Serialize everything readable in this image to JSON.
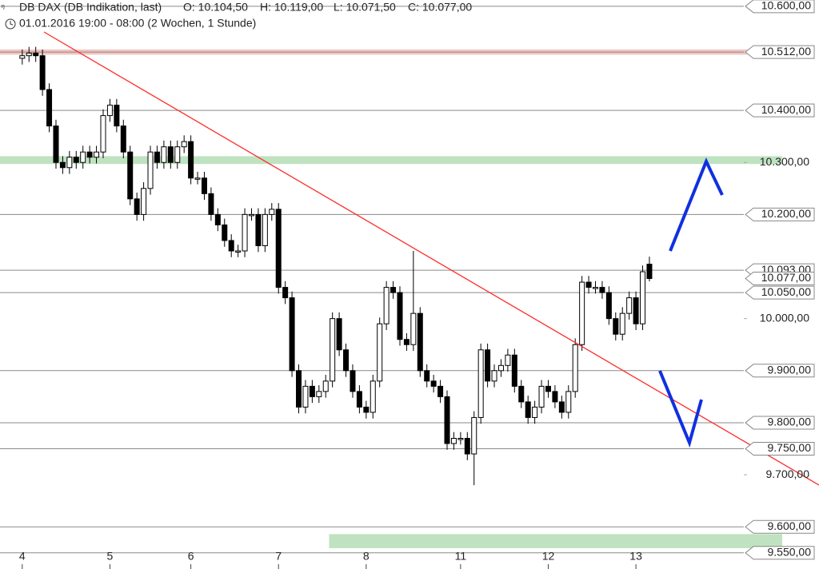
{
  "chart_data": {
    "type": "candlestick",
    "title": "DB DAX (DB Indikation, last)",
    "ohlc_labels": [
      "O: 10.104,50",
      "H: 10.119,00",
      "L: 10.071,50",
      "C: 10.077,00"
    ],
    "subtitle": "01.01.2016 19:00 - 08:00 (2 Wochen, 1 Stunde)",
    "up_color": "#ffffff",
    "down_color": "#000000",
    "open": [
      10500,
      10505,
      10510,
      10505,
      10440,
      10370,
      10300,
      10290,
      10310,
      10300,
      10320,
      10310,
      10320,
      10390,
      10410,
      10370,
      10320,
      10230,
      10200,
      10250,
      10320,
      10300,
      10330,
      10300,
      10330,
      10340,
      10270,
      10270,
      10240,
      10200,
      10180,
      10150,
      10130,
      10130,
      10200,
      10200,
      10140,
      10200,
      10210,
      10060,
      10040,
      9900,
      9830,
      9870,
      9850,
      9860,
      9880,
      10000,
      9940,
      9900,
      9860,
      9830,
      9820,
      9880,
      9990,
      10060,
      10050,
      9960,
      9950,
      10010,
      9900,
      9880,
      9870,
      9850,
      9760,
      9770,
      9770,
      9740,
      9810,
      9940,
      9880,
      9900,
      9910,
      9930,
      9870,
      9840,
      9810,
      9830,
      9870,
      9860,
      9840,
      9820,
      9860,
      9950,
      10070,
      10060,
      10060,
      10050,
      10000,
      9970,
      10010,
      10040,
      9990,
      10104.5
    ],
    "high": [
      10517,
      10522,
      10522,
      10517,
      10452,
      10382,
      10312,
      10322,
      10322,
      10332,
      10332,
      10332,
      10402,
      10422,
      10422,
      10382,
      10332,
      10242,
      10262,
      10332,
      10332,
      10342,
      10342,
      10342,
      10352,
      10352,
      10282,
      10282,
      10252,
      10212,
      10192,
      10162,
      10142,
      10212,
      10212,
      10212,
      10212,
      10222,
      10222,
      10072,
      10052,
      9912,
      9882,
      9882,
      9872,
      9892,
      10012,
      10012,
      9952,
      9912,
      9872,
      9842,
      9892,
      10002,
      10072,
      10072,
      10062,
      9972,
      10130,
      10022,
      9912,
      9892,
      9882,
      9862,
      9782,
      9782,
      9782,
      9822,
      9952,
      9952,
      9912,
      9922,
      9942,
      9942,
      9882,
      9852,
      9842,
      9882,
      9882,
      9872,
      9852,
      9872,
      9962,
      10082,
      10082,
      10072,
      10072,
      10062,
      10012,
      10022,
      10052,
      10052,
      10102,
      10119
    ],
    "low": [
      10488,
      10493,
      10493,
      10428,
      10358,
      10288,
      10278,
      10278,
      10288,
      10288,
      10298,
      10298,
      10308,
      10378,
      10358,
      10308,
      10218,
      10188,
      10188,
      10238,
      10288,
      10288,
      10288,
      10288,
      10318,
      10258,
      10258,
      10228,
      10188,
      10168,
      10138,
      10118,
      10118,
      10118,
      10188,
      10128,
      10128,
      10188,
      10048,
      10028,
      9888,
      9818,
      9818,
      9838,
      9838,
      9848,
      9868,
      9928,
      9888,
      9848,
      9818,
      9808,
      9808,
      9868,
      9978,
      10038,
      9948,
      9938,
      9938,
      9888,
      9868,
      9858,
      9838,
      9748,
      9748,
      9758,
      9728,
      9680,
      9798,
      9868,
      9868,
      9888,
      9898,
      9858,
      9828,
      9798,
      9798,
      9818,
      9848,
      9828,
      9808,
      9808,
      9848,
      9938,
      10048,
      10048,
      10038,
      9988,
      9958,
      9958,
      9998,
      9978,
      9978,
      10071.5
    ],
    "close": [
      10505,
      10510,
      10505,
      10440,
      10370,
      10300,
      10290,
      10310,
      10300,
      10320,
      10310,
      10320,
      10390,
      10410,
      10370,
      10320,
      10230,
      10200,
      10250,
      10320,
      10300,
      10330,
      10300,
      10330,
      10340,
      10270,
      10270,
      10240,
      10200,
      10180,
      10150,
      10130,
      10130,
      10200,
      10200,
      10140,
      10200,
      10210,
      10060,
      10040,
      9900,
      9830,
      9870,
      9850,
      9860,
      9880,
      10000,
      9940,
      9900,
      9860,
      9830,
      9820,
      9880,
      9990,
      10060,
      10050,
      9960,
      9950,
      10010,
      9900,
      9880,
      9870,
      9850,
      9760,
      9770,
      9770,
      9740,
      9810,
      9940,
      9880,
      9900,
      9910,
      9930,
      9870,
      9840,
      9810,
      9830,
      9870,
      9860,
      9840,
      9820,
      9860,
      9950,
      10070,
      10060,
      10060,
      10050,
      10000,
      9970,
      10010,
      10040,
      9990,
      10090,
      10077
    ],
    "xlim": [
      -3.3,
      107
    ],
    "xticks": [
      {
        "value": 0,
        "label": "4"
      },
      {
        "value": 13,
        "label": "5"
      },
      {
        "value": 25,
        "label": "6"
      },
      {
        "value": 38,
        "label": "7"
      },
      {
        "value": 51,
        "label": "8"
      },
      {
        "value": 65,
        "label": "11"
      },
      {
        "value": 78,
        "label": "12"
      },
      {
        "value": 91,
        "label": "13"
      }
    ],
    "ylim": [
      9519,
      10612
    ],
    "yticks": [
      {
        "value": 10300,
        "label": "10.300,00"
      },
      {
        "value": 10000,
        "label": "10.000,00"
      },
      {
        "value": 9700,
        "label": "9.700,00"
      }
    ],
    "levels": [
      {
        "value": 10600,
        "label": "10.600,00"
      },
      {
        "value": 10512,
        "label": "10.512,00"
      },
      {
        "value": 10400,
        "label": "10.400,00"
      },
      {
        "value": 10200,
        "label": "10.200,00"
      },
      {
        "value": 10093,
        "label": "10.093,00"
      },
      {
        "value": 10050,
        "label": "10.050,00"
      },
      {
        "value": 9900,
        "label": "9.900,00"
      },
      {
        "value": 9800,
        "label": "9.800,00"
      },
      {
        "value": 9750,
        "label": "9.750,00"
      },
      {
        "value": 9600,
        "label": "9.600,00"
      },
      {
        "value": 9550,
        "label": "9.550,00"
      }
    ],
    "current_price": {
      "value": 10077,
      "label": "10.077,00"
    },
    "zones": [
      {
        "from": 10507,
        "to": 10517,
        "color": "#f2c4c0"
      },
      {
        "from": 10297,
        "to": 10312,
        "color": "#bfe3c0"
      },
      {
        "from": 9559,
        "to": 9586,
        "color": "#bfe3c0",
        "x_from": 45.5
      }
    ]
  }
}
